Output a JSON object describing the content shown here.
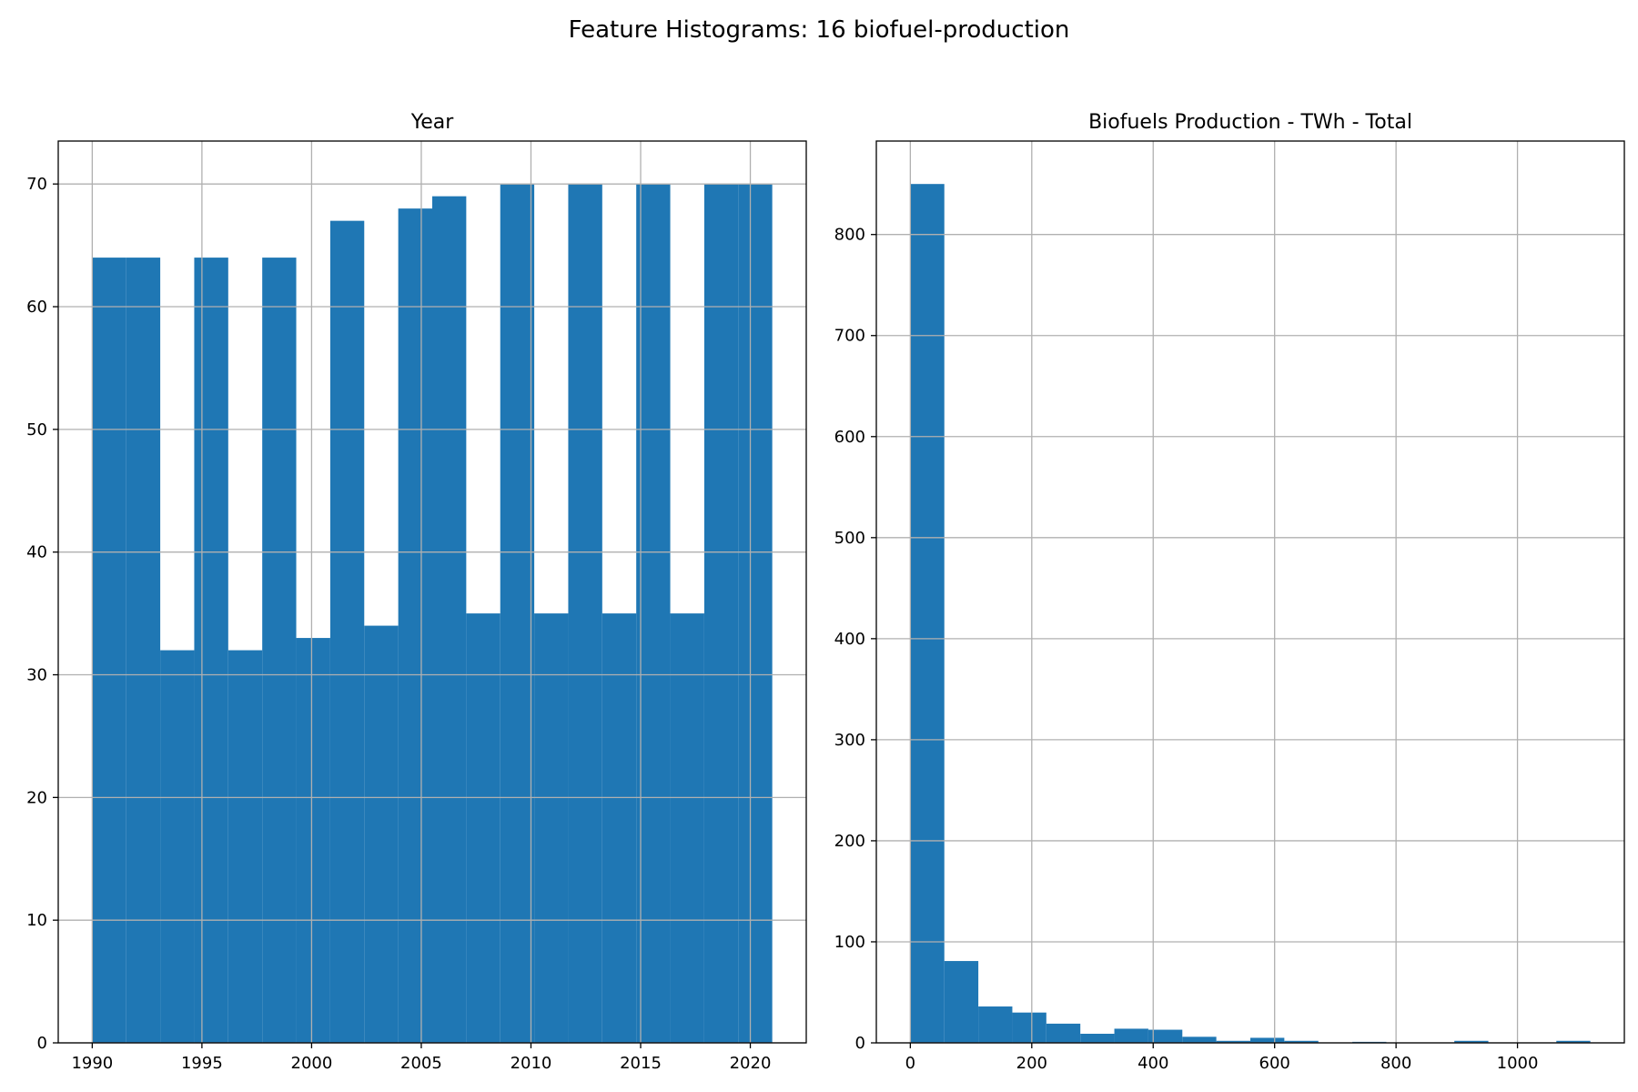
{
  "figure_title": "Feature Histograms: 16 biofuel-production",
  "colors": {
    "bar": "#1f77b4",
    "grid": "#b0b0b0",
    "axis": "#000000"
  },
  "chart_data": [
    {
      "type": "bar",
      "title": "Year",
      "xlabel": "",
      "ylabel": "",
      "grid": true,
      "xlim": [
        1988.45,
        2022.55
      ],
      "ylim": [
        0,
        73.5
      ],
      "xticks": [
        1990,
        1995,
        2000,
        2005,
        2010,
        2015,
        2020
      ],
      "yticks": [
        0,
        10,
        20,
        30,
        40,
        50,
        60,
        70
      ],
      "bin_edges": [
        1990,
        1991.55,
        1993.1,
        1994.65,
        1996.2,
        1997.75,
        1999.3,
        2000.85,
        2002.4,
        2003.95,
        2005.5,
        2007.05,
        2008.6,
        2010.15,
        2011.7,
        2013.25,
        2014.8,
        2016.35,
        2017.9,
        2019.45,
        2021
      ],
      "counts": [
        64,
        64,
        32,
        64,
        32,
        64,
        33,
        67,
        34,
        68,
        69,
        35,
        70,
        35,
        70,
        35,
        70,
        35,
        70,
        70
      ]
    },
    {
      "type": "bar",
      "title": "Biofuels Production - TWh - Total",
      "xlabel": "",
      "ylabel": "",
      "grid": true,
      "xlim": [
        -56,
        1176
      ],
      "ylim": [
        0,
        892.5
      ],
      "xticks": [
        0,
        200,
        400,
        600,
        800,
        1000
      ],
      "yticks": [
        0,
        100,
        200,
        300,
        400,
        500,
        600,
        700,
        800
      ],
      "bin_edges": [
        0,
        56,
        112,
        168,
        224,
        280,
        336,
        392,
        448,
        504,
        560,
        616,
        672,
        728,
        784,
        840,
        896,
        952,
        1008,
        1064,
        1120
      ],
      "counts": [
        850,
        81,
        36,
        30,
        19,
        9,
        14,
        13,
        6,
        2,
        5,
        2,
        0,
        1,
        0,
        0,
        2,
        0,
        0,
        2
      ]
    }
  ]
}
